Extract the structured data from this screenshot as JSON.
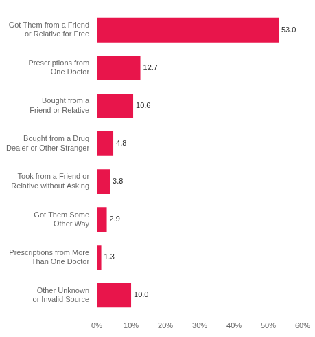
{
  "chart_data": {
    "type": "bar",
    "orientation": "horizontal",
    "categories": [
      "Got Them from a Friend\nor Relative for Free",
      "Prescriptions from\nOne Doctor",
      "Bought from a\nFriend or Relative",
      "Bought from a Drug\nDealer or Other Stranger",
      "Took from a Friend or\nRelative without Asking",
      "Got Them Some\nOther Way",
      "Prescriptions from More\nThan One Doctor",
      "Other Unknown\nor Invalid Source"
    ],
    "values": [
      53.0,
      12.7,
      10.6,
      4.8,
      3.8,
      2.9,
      1.3,
      10.0
    ],
    "value_labels": [
      "53.0",
      "12.7",
      "10.6",
      "4.8",
      "3.8",
      "2.9",
      "1.3",
      "10.0"
    ],
    "data_labels": true,
    "color": "#E8154B",
    "xlim": [
      0,
      60
    ],
    "xticks": [
      {
        "value": 0,
        "label": "0%"
      },
      {
        "value": 10,
        "label": "10%"
      },
      {
        "value": 20,
        "label": "20%"
      },
      {
        "value": 30,
        "label": "30%"
      },
      {
        "value": 40,
        "label": "40%"
      },
      {
        "value": 50,
        "label": "50%"
      },
      {
        "value": 60,
        "label": "60%"
      }
    ],
    "grid": false
  }
}
